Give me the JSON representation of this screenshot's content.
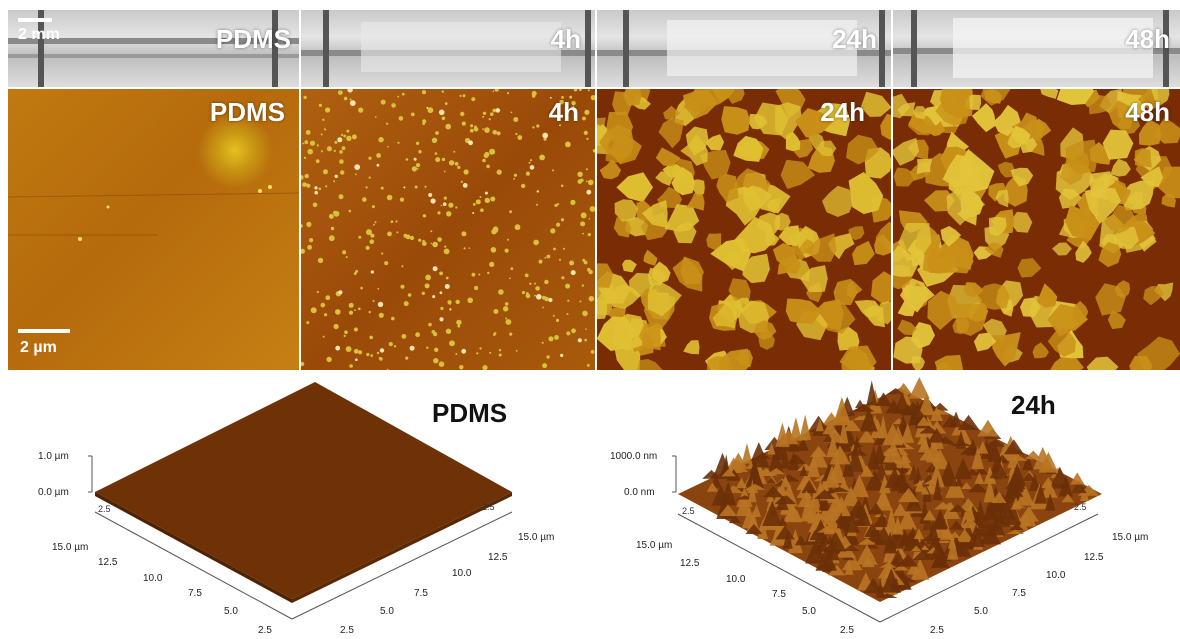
{
  "top_row": {
    "scale_label": "2 mm",
    "labels": [
      "PDMS",
      "4h",
      "24h",
      "48h"
    ]
  },
  "middle_row": {
    "scale_label": "2 µm",
    "labels": [
      "PDMS",
      "4h",
      "24h",
      "48h"
    ]
  },
  "plot_left": {
    "title": "PDMS",
    "z_ticks": [
      "1.0 µm",
      "0.0 µm"
    ],
    "left_axis": [
      "15.0 µm",
      "12.5",
      "10.0",
      "7.5",
      "5.0",
      "2.5"
    ],
    "right_axis": [
      "15.0 µm",
      "12.5",
      "10.0",
      "7.5",
      "5.0",
      "2.5"
    ],
    "small_ticks": [
      "2.5",
      "2.5"
    ]
  },
  "plot_right": {
    "title": "24h",
    "z_ticks": [
      "1000.0 nm",
      "0.0 nm"
    ],
    "left_axis": [
      "15.0 µm",
      "12.5",
      "10.0",
      "7.5",
      "5.0",
      "2.5"
    ],
    "right_axis": [
      "15.0 µm",
      "12.5",
      "10.0",
      "7.5",
      "5.0",
      "2.5"
    ],
    "small_ticks": [
      "2.5",
      "2.5"
    ]
  },
  "colors": {
    "afm_dark": "#7a2c04",
    "afm_light": "#e8d23a",
    "surface_brown": "#6e3206"
  }
}
